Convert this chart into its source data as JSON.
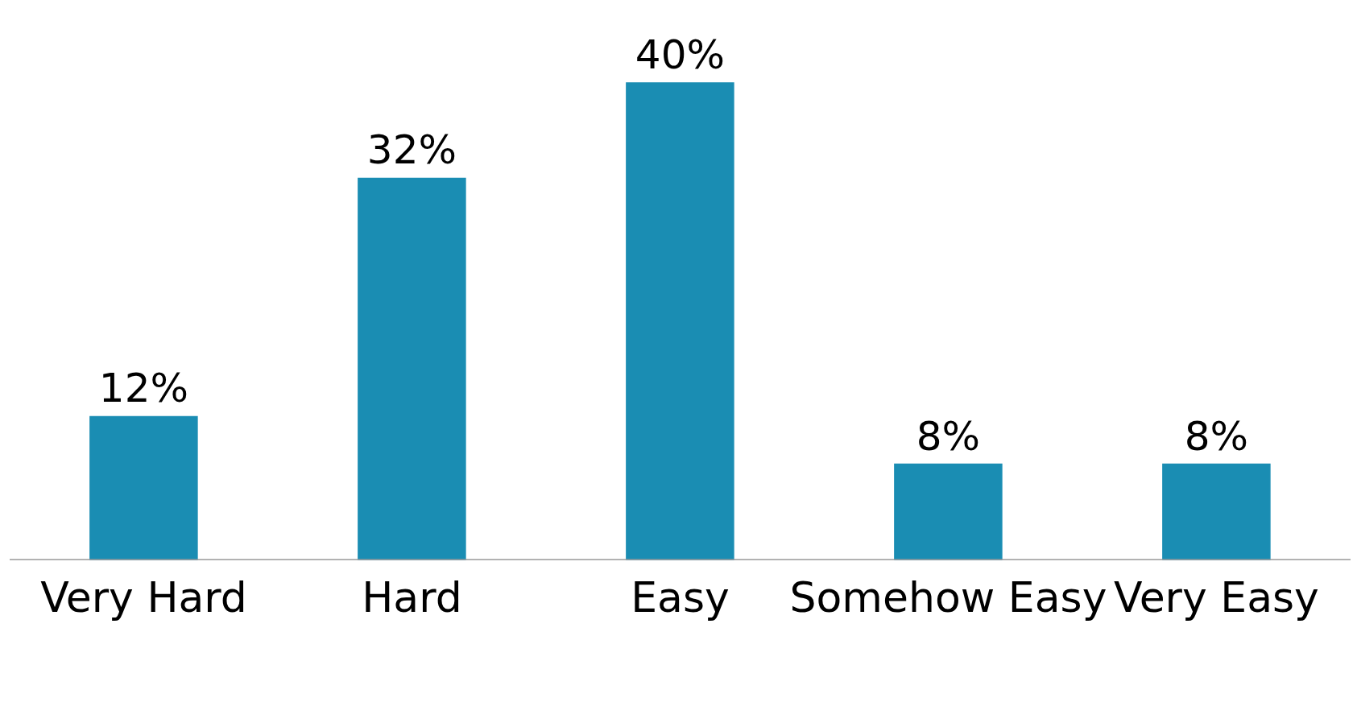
{
  "chart_data": {
    "type": "bar",
    "categories": [
      "Very Hard",
      "Hard",
      "Easy",
      "Somehow Easy",
      "Very Easy"
    ],
    "values": [
      12,
      32,
      40,
      8,
      8
    ],
    "value_labels": [
      "12%",
      "32%",
      "40%",
      "8%",
      "8%"
    ],
    "color": "#1a8db3",
    "grid": false
  }
}
